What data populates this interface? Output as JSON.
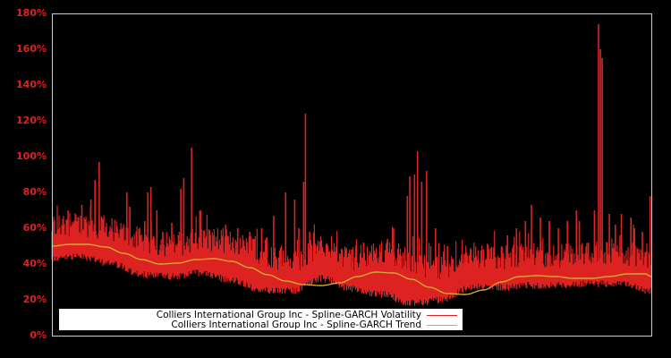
{
  "chart_data": {
    "type": "line",
    "title": "",
    "xlabel": "",
    "ylabel": "",
    "ylim": [
      0,
      180
    ],
    "y_ticks": [
      "0%",
      "20%",
      "40%",
      "60%",
      "80%",
      "100%",
      "120%",
      "140%",
      "160%",
      "180%"
    ],
    "x_ticks": [],
    "grid": false,
    "background": "#000000",
    "legend_position": "lower-left-inside",
    "series": [
      {
        "name": "Colliers International Group Inc - Spline-GARCH Volatility",
        "color": "#dd2222",
        "baseline_profile_x_fraction": [
          0.0,
          0.05,
          0.1,
          0.15,
          0.2,
          0.25,
          0.3,
          0.35,
          0.4,
          0.45,
          0.5,
          0.55,
          0.6,
          0.65,
          0.7,
          0.75,
          0.8,
          0.85,
          0.9,
          0.95,
          1.0
        ],
        "baseline_profile_values": [
          45,
          46,
          42,
          36,
          35,
          37,
          33,
          27,
          27,
          34,
          28,
          25,
          20,
          22,
          29,
          29,
          30,
          30,
          31,
          31,
          27
        ],
        "spikes": [
          {
            "x": 0.027,
            "value": 70
          },
          {
            "x": 0.025,
            "value": 65
          },
          {
            "x": 0.04,
            "value": 62
          },
          {
            "x": 0.05,
            "value": 73
          },
          {
            "x": 0.055,
            "value": 65
          },
          {
            "x": 0.065,
            "value": 76
          },
          {
            "x": 0.072,
            "value": 87
          },
          {
            "x": 0.079,
            "value": 97
          },
          {
            "x": 0.085,
            "value": 65
          },
          {
            "x": 0.1,
            "value": 60
          },
          {
            "x": 0.125,
            "value": 80
          },
          {
            "x": 0.13,
            "value": 72
          },
          {
            "x": 0.155,
            "value": 64
          },
          {
            "x": 0.16,
            "value": 80
          },
          {
            "x": 0.165,
            "value": 83
          },
          {
            "x": 0.175,
            "value": 70
          },
          {
            "x": 0.185,
            "value": 58
          },
          {
            "x": 0.2,
            "value": 63
          },
          {
            "x": 0.215,
            "value": 82
          },
          {
            "x": 0.22,
            "value": 88
          },
          {
            "x": 0.233,
            "value": 105
          },
          {
            "x": 0.248,
            "value": 70
          },
          {
            "x": 0.27,
            "value": 56
          },
          {
            "x": 0.29,
            "value": 62
          },
          {
            "x": 0.31,
            "value": 60
          },
          {
            "x": 0.33,
            "value": 58
          },
          {
            "x": 0.35,
            "value": 60
          },
          {
            "x": 0.37,
            "value": 67
          },
          {
            "x": 0.39,
            "value": 80
          },
          {
            "x": 0.405,
            "value": 76
          },
          {
            "x": 0.412,
            "value": 60
          },
          {
            "x": 0.42,
            "value": 86
          },
          {
            "x": 0.423,
            "value": 124
          },
          {
            "x": 0.43,
            "value": 58
          },
          {
            "x": 0.46,
            "value": 48
          },
          {
            "x": 0.48,
            "value": 46
          },
          {
            "x": 0.5,
            "value": 48
          },
          {
            "x": 0.52,
            "value": 52
          },
          {
            "x": 0.54,
            "value": 46
          },
          {
            "x": 0.56,
            "value": 54
          },
          {
            "x": 0.57,
            "value": 60
          },
          {
            "x": 0.593,
            "value": 78
          },
          {
            "x": 0.597,
            "value": 89
          },
          {
            "x": 0.605,
            "value": 90
          },
          {
            "x": 0.61,
            "value": 103
          },
          {
            "x": 0.617,
            "value": 86
          },
          {
            "x": 0.625,
            "value": 92
          },
          {
            "x": 0.64,
            "value": 60
          },
          {
            "x": 0.66,
            "value": 50
          },
          {
            "x": 0.69,
            "value": 46
          },
          {
            "x": 0.71,
            "value": 40
          },
          {
            "x": 0.72,
            "value": 48
          },
          {
            "x": 0.74,
            "value": 44
          },
          {
            "x": 0.75,
            "value": 50
          },
          {
            "x": 0.76,
            "value": 56
          },
          {
            "x": 0.775,
            "value": 60
          },
          {
            "x": 0.79,
            "value": 64
          },
          {
            "x": 0.8,
            "value": 73
          },
          {
            "x": 0.815,
            "value": 66
          },
          {
            "x": 0.83,
            "value": 64
          },
          {
            "x": 0.845,
            "value": 60
          },
          {
            "x": 0.86,
            "value": 64
          },
          {
            "x": 0.875,
            "value": 70
          },
          {
            "x": 0.88,
            "value": 64
          },
          {
            "x": 0.895,
            "value": 52
          },
          {
            "x": 0.905,
            "value": 70
          },
          {
            "x": 0.912,
            "value": 174
          },
          {
            "x": 0.915,
            "value": 160
          },
          {
            "x": 0.918,
            "value": 155
          },
          {
            "x": 0.93,
            "value": 68
          },
          {
            "x": 0.94,
            "value": 62
          },
          {
            "x": 0.95,
            "value": 68
          },
          {
            "x": 0.966,
            "value": 66
          },
          {
            "x": 0.972,
            "value": 60
          },
          {
            "x": 0.985,
            "value": 58
          },
          {
            "x": 0.998,
            "value": 78
          }
        ]
      },
      {
        "name": "Colliers International Group Inc - Spline-GARCH Trend",
        "color": "#d4a832",
        "x_fraction": [
          0.0,
          0.03,
          0.06,
          0.09,
          0.12,
          0.15,
          0.18,
          0.21,
          0.24,
          0.27,
          0.3,
          0.33,
          0.36,
          0.39,
          0.42,
          0.45,
          0.48,
          0.51,
          0.54,
          0.57,
          0.6,
          0.63,
          0.66,
          0.69,
          0.72,
          0.75,
          0.78,
          0.81,
          0.84,
          0.87,
          0.9,
          0.93,
          0.96,
          0.99,
          1.0
        ],
        "values": [
          50,
          51,
          51,
          49.5,
          46,
          42.5,
          40,
          40.5,
          42.5,
          43,
          41.5,
          38,
          34,
          30.5,
          28.5,
          28,
          29.5,
          33,
          35.5,
          35,
          31.5,
          27,
          23.5,
          23,
          25.5,
          30,
          33,
          33.5,
          33,
          32,
          32,
          33,
          34.5,
          34.5,
          33
        ]
      }
    ]
  },
  "legend": {
    "items": [
      {
        "label": "Colliers International Group Inc - Spline-GARCH Volatility",
        "color": "#dd2222"
      },
      {
        "label": "Colliers International Group Inc - Spline-GARCH Trend",
        "color": "#d4a832"
      }
    ]
  }
}
